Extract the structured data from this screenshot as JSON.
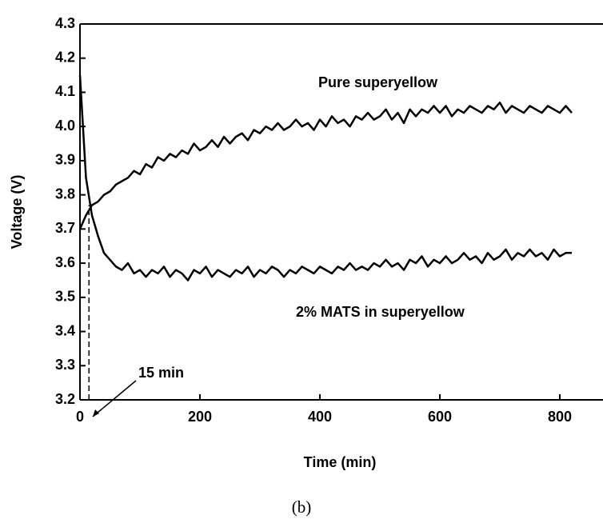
{
  "chart_data": {
    "type": "line",
    "xlabel": "Time (min)",
    "ylabel": "Voltage (V)",
    "caption": "(b)",
    "xlim": [
      0,
      872
    ],
    "xticks": [
      0,
      200,
      400,
      600,
      800
    ],
    "ylim": [
      3.2,
      4.3
    ],
    "yticks": [
      3.2,
      3.3,
      3.4,
      3.5,
      3.6,
      3.7,
      3.8,
      3.9,
      {
        "value": 4,
        "label": "4.0"
      },
      4.1,
      4.2,
      4.3
    ],
    "vline": {
      "x": 15,
      "label": "15 min"
    },
    "x": [
      0,
      10,
      20,
      30,
      40,
      50,
      60,
      70,
      80,
      90,
      100,
      110,
      120,
      130,
      140,
      150,
      160,
      170,
      180,
      190,
      200,
      210,
      220,
      230,
      240,
      250,
      260,
      270,
      280,
      290,
      300,
      310,
      320,
      330,
      340,
      350,
      360,
      370,
      380,
      390,
      400,
      410,
      420,
      430,
      440,
      450,
      460,
      470,
      480,
      490,
      500,
      510,
      520,
      530,
      540,
      550,
      560,
      570,
      580,
      590,
      600,
      610,
      620,
      630,
      640,
      650,
      660,
      670,
      680,
      690,
      700,
      710,
      720,
      730,
      740,
      750,
      760,
      770,
      780,
      790,
      800,
      810,
      820
    ],
    "series": [
      {
        "name": "Pure superyellow",
        "color": "#000000",
        "values": [
          3.7,
          3.74,
          3.77,
          3.78,
          3.8,
          3.81,
          3.83,
          3.84,
          3.85,
          3.87,
          3.86,
          3.89,
          3.88,
          3.91,
          3.9,
          3.92,
          3.91,
          3.93,
          3.92,
          3.95,
          3.93,
          3.94,
          3.96,
          3.94,
          3.97,
          3.95,
          3.97,
          3.98,
          3.96,
          3.99,
          3.98,
          4.0,
          3.99,
          4.01,
          3.99,
          4.0,
          4.02,
          4.0,
          4.01,
          3.99,
          4.02,
          4.0,
          4.03,
          4.01,
          4.02,
          4.0,
          4.03,
          4.02,
          4.04,
          4.02,
          4.03,
          4.05,
          4.02,
          4.04,
          4.01,
          4.05,
          4.03,
          4.05,
          4.04,
          4.06,
          4.04,
          4.06,
          4.03,
          4.05,
          4.04,
          4.06,
          4.05,
          4.04,
          4.06,
          4.05,
          4.07,
          4.04,
          4.06,
          4.05,
          4.04,
          4.06,
          4.05,
          4.04,
          4.06,
          4.05,
          4.04,
          4.06,
          4.04
        ]
      },
      {
        "name": "2% MATS in superyellow",
        "color": "#000000",
        "values": [
          4.15,
          3.85,
          3.74,
          3.68,
          3.63,
          3.61,
          3.59,
          3.58,
          3.6,
          3.57,
          3.58,
          3.56,
          3.58,
          3.57,
          3.59,
          3.56,
          3.58,
          3.57,
          3.55,
          3.58,
          3.57,
          3.59,
          3.56,
          3.58,
          3.57,
          3.56,
          3.58,
          3.57,
          3.59,
          3.56,
          3.58,
          3.57,
          3.59,
          3.58,
          3.56,
          3.58,
          3.57,
          3.59,
          3.58,
          3.57,
          3.59,
          3.58,
          3.57,
          3.59,
          3.58,
          3.6,
          3.58,
          3.59,
          3.58,
          3.6,
          3.59,
          3.61,
          3.59,
          3.6,
          3.58,
          3.61,
          3.6,
          3.62,
          3.59,
          3.61,
          3.6,
          3.62,
          3.6,
          3.61,
          3.63,
          3.61,
          3.62,
          3.6,
          3.63,
          3.61,
          3.62,
          3.64,
          3.61,
          3.63,
          3.62,
          3.64,
          3.62,
          3.63,
          3.61,
          3.64,
          3.62,
          3.63,
          3.63
        ]
      }
    ]
  }
}
